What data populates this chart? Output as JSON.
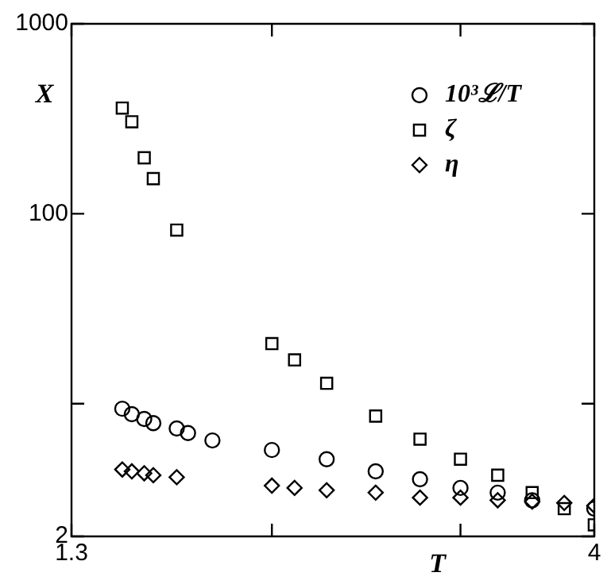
{
  "chart_data": {
    "type": "scatter",
    "xlabel": "T",
    "ylabel": "X",
    "log": "xy",
    "grid": false,
    "legend": "top right",
    "xlim": [
      1.3,
      4
    ],
    "ylim": [
      2,
      1000
    ],
    "xticks": [
      1.3,
      {
        "value": 2,
        "label": null
      },
      {
        "value": 3,
        "label": null
      },
      4
    ],
    "yticks": [
      2,
      {
        "value": 10,
        "label": null
      },
      100,
      1000
    ],
    "series": [
      {
        "name": "10³ℒ/T",
        "color": "#000000",
        "marker": "circle",
        "x": [
          1.45,
          1.48,
          1.52,
          1.55,
          1.63,
          1.67,
          1.76,
          2,
          2.25,
          2.5,
          2.75,
          3,
          3.25,
          3.5,
          4
        ],
        "values": [
          9.4,
          8.8,
          8.3,
          7.9,
          7.4,
          7.0,
          6.4,
          5.7,
          5.1,
          4.4,
          4.0,
          3.6,
          3.4,
          3.1,
          2.8
        ]
      },
      {
        "name": "ζ",
        "color": "#000000",
        "marker": "square",
        "x": [
          1.45,
          1.48,
          1.52,
          1.55,
          1.63,
          2,
          2.1,
          2.25,
          2.5,
          2.75,
          3,
          3.25,
          3.5,
          3.75,
          4
        ],
        "values": [
          360,
          305,
          197,
          153,
          82,
          20.7,
          17,
          12.8,
          8.6,
          6.5,
          5.1,
          4.2,
          3.4,
          2.8,
          2.3
        ]
      },
      {
        "name": "η",
        "color": "#000000",
        "marker": "diamond",
        "x": [
          1.45,
          1.48,
          1.52,
          1.55,
          1.63,
          2,
          2.1,
          2.25,
          2.5,
          2.75,
          3,
          3.25,
          3.5,
          3.75,
          4
        ],
        "values": [
          4.5,
          4.4,
          4.3,
          4.2,
          4.1,
          3.7,
          3.6,
          3.5,
          3.4,
          3.2,
          3.2,
          3.1,
          3.05,
          3.0,
          2.9
        ]
      }
    ]
  }
}
